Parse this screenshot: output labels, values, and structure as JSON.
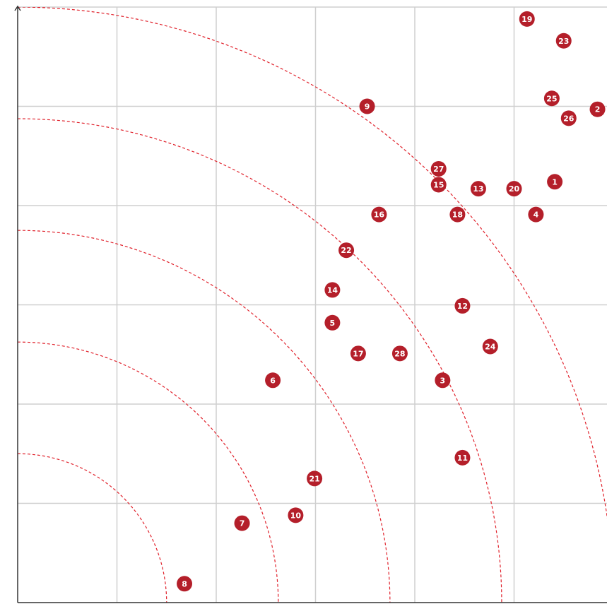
{
  "chart_data": {
    "type": "scatter",
    "title": "",
    "xlabel": "",
    "ylabel": "",
    "xlim": [
      0,
      6
    ],
    "ylim": [
      0,
      6
    ],
    "grid": true,
    "legend": "none",
    "ring_radii": [
      1.5,
      2.625,
      3.75,
      4.875,
      6.0
    ],
    "colors": {
      "marker": "#b41f2a",
      "ring": "#e0212b",
      "grid": "#cfcfcf",
      "axis": "#333333"
    },
    "points": [
      {
        "label": "1",
        "x": 5.41,
        "y": 4.24
      },
      {
        "label": "2",
        "x": 5.84,
        "y": 4.97
      },
      {
        "label": "3",
        "x": 4.28,
        "y": 2.24
      },
      {
        "label": "4",
        "x": 5.22,
        "y": 3.91
      },
      {
        "label": "5",
        "x": 3.17,
        "y": 2.82
      },
      {
        "label": "6",
        "x": 2.57,
        "y": 2.24
      },
      {
        "label": "7",
        "x": 2.26,
        "y": 0.8
      },
      {
        "label": "8",
        "x": 1.68,
        "y": 0.19
      },
      {
        "label": "9",
        "x": 3.52,
        "y": 5.0
      },
      {
        "label": "10",
        "x": 2.8,
        "y": 0.88
      },
      {
        "label": "11",
        "x": 4.48,
        "y": 1.46
      },
      {
        "label": "12",
        "x": 4.48,
        "y": 2.99
      },
      {
        "label": "13",
        "x": 4.64,
        "y": 4.17
      },
      {
        "label": "14",
        "x": 3.17,
        "y": 3.15
      },
      {
        "label": "15",
        "x": 4.24,
        "y": 4.21
      },
      {
        "label": "16",
        "x": 3.64,
        "y": 3.91
      },
      {
        "label": "17",
        "x": 3.43,
        "y": 2.51
      },
      {
        "label": "18",
        "x": 4.43,
        "y": 3.91
      },
      {
        "label": "19",
        "x": 5.13,
        "y": 5.88
      },
      {
        "label": "20",
        "x": 5.0,
        "y": 4.17
      },
      {
        "label": "21",
        "x": 2.99,
        "y": 1.25
      },
      {
        "label": "22",
        "x": 3.31,
        "y": 3.55
      },
      {
        "label": "23",
        "x": 5.5,
        "y": 5.66
      },
      {
        "label": "24",
        "x": 4.76,
        "y": 2.58
      },
      {
        "label": "25",
        "x": 5.38,
        "y": 5.08
      },
      {
        "label": "26",
        "x": 5.55,
        "y": 4.88
      },
      {
        "label": "27",
        "x": 4.24,
        "y": 4.37
      },
      {
        "label": "28",
        "x": 3.85,
        "y": 2.51
      }
    ]
  }
}
